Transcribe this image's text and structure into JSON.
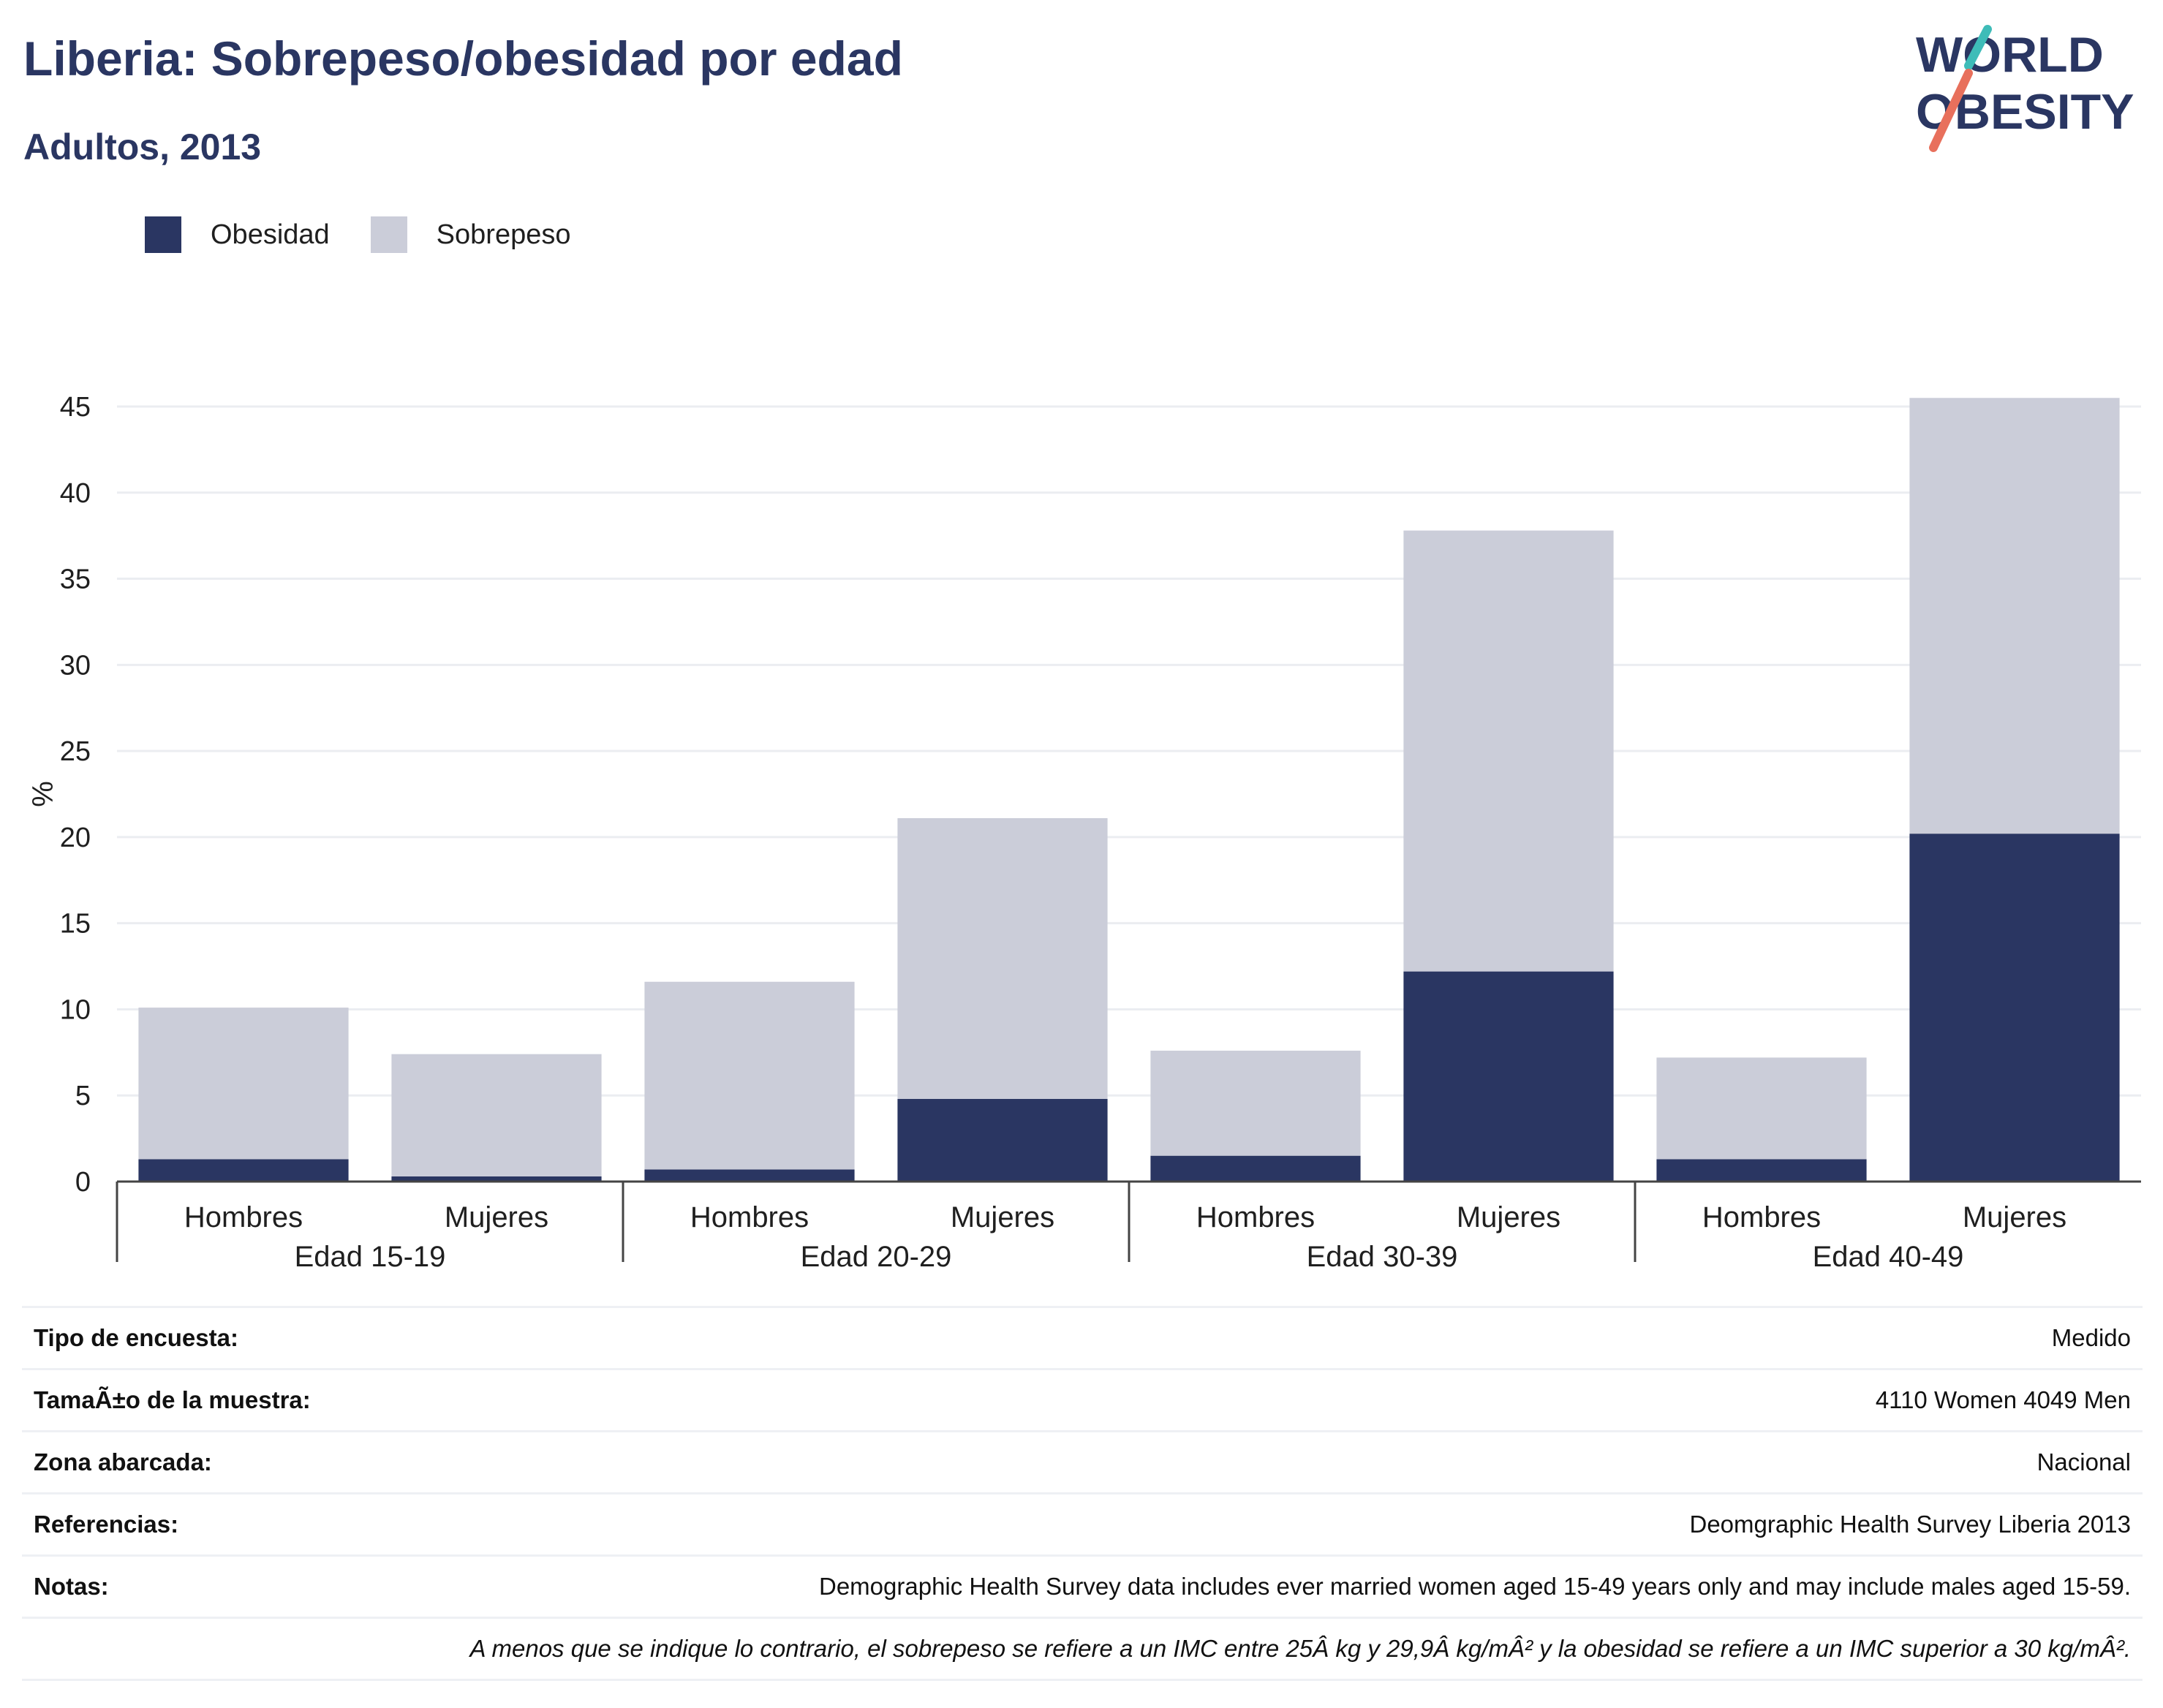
{
  "title": "Liberia: Sobrepeso/obesidad por edad",
  "subtitle": "Adultos, 2013",
  "logo": {
    "line1": "WORLD",
    "line2": "OBESITY"
  },
  "colors": {
    "obesity": "#2a3662",
    "overweight": "#cbcdd9",
    "grid": "#ebedf1",
    "axis": "#444444",
    "text": "#1f1f1f"
  },
  "chart_data": {
    "type": "bar",
    "stacked": true,
    "ylabel": "%",
    "ylim": [
      0,
      45
    ],
    "yticks": [
      0,
      5,
      10,
      15,
      20,
      25,
      30,
      35,
      40,
      45
    ],
    "grid": true,
    "legend_position": "top-left",
    "groups": [
      "Edad 15-19",
      "Edad 20-29",
      "Edad 30-39",
      "Edad 40-49"
    ],
    "categories": [
      "Hombres",
      "Mujeres",
      "Hombres",
      "Mujeres",
      "Hombres",
      "Mujeres",
      "Hombres",
      "Mujeres"
    ],
    "series": [
      {
        "name": "Obesidad",
        "values": [
          1.3,
          0.3,
          0.7,
          4.8,
          1.5,
          12.2,
          1.3,
          20.2
        ]
      },
      {
        "name": "Sobrepeso",
        "values": [
          8.8,
          7.1,
          10.9,
          16.3,
          6.1,
          25.6,
          5.9,
          25.3
        ]
      }
    ]
  },
  "info": {
    "rows": [
      {
        "label": "Tipo de encuesta:",
        "value": "Medido"
      },
      {
        "label": "TamaÃ±o de la muestra:",
        "value": "4110 Women 4049 Men"
      },
      {
        "label": "Zona abarcada:",
        "value": "Nacional"
      },
      {
        "label": "Referencias:",
        "value": "Deomgraphic Health Survey Liberia 2013"
      },
      {
        "label": "Notas:",
        "value": "Demographic Health Survey data includes ever married women aged 15-49 years only and may include males aged 15-59."
      }
    ],
    "footnote": "A menos que se indique lo contrario, el sobrepeso se refiere a un IMC entre 25Â kg y 29,9Â kg/mÂ² y la obesidad se refiere a un IMC superior a 30 kg/mÂ²."
  }
}
